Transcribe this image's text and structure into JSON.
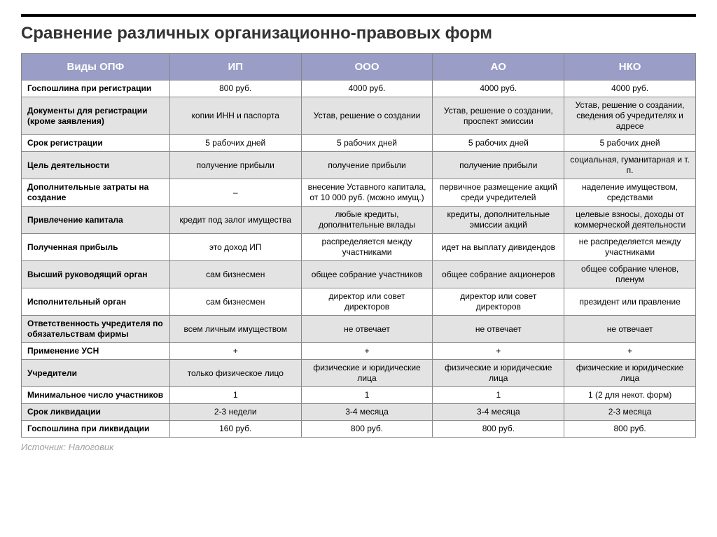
{
  "title": "Сравнение различных организационно-правовых форм",
  "source": "Источник: Налоговик",
  "table": {
    "type": "table",
    "header_bg": "#9a9dc5",
    "header_fg": "#ffffff",
    "row_alt_bg": "#e3e3e3",
    "row_bg": "#ffffff",
    "border_color": "#888888",
    "font_size_header": 15,
    "font_size_cell": 12,
    "columns": [
      "Виды ОПФ",
      "ИП",
      "ООО",
      "АО",
      "НКО"
    ],
    "rows": [
      {
        "label": "Госпошлина при регистрации",
        "cells": [
          "800 руб.",
          "4000 руб.",
          "4000 руб.",
          "4000 руб."
        ]
      },
      {
        "label": "Документы для регистрации (кроме заявления)",
        "cells": [
          "копии ИНН и паспорта",
          "Устав, решение о создании",
          "Устав, решение о создании, проспект эмиссии",
          "Устав, решение о создании, сведения об учредителях и адресе"
        ]
      },
      {
        "label": "Срок регистрации",
        "cells": [
          "5 рабочих дней",
          "5 рабочих дней",
          "5 рабочих дней",
          "5 рабочих дней"
        ]
      },
      {
        "label": "Цель деятельности",
        "cells": [
          "получение прибыли",
          "получение прибыли",
          "получение прибыли",
          "социальная, гуманитарная и т. п."
        ]
      },
      {
        "label": "Дополнительные затраты на создание",
        "cells": [
          "–",
          "внесение Уставного капитала, от 10 000 руб. (можно имущ.)",
          "первичное размещение акций среди учредителей",
          "наделение имуществом, средствами"
        ]
      },
      {
        "label": "Привлечение капитала",
        "cells": [
          "кредит под залог имущества",
          "любые кредиты, дополнительные вклады",
          "кредиты, дополнительные эмиссии акций",
          "целевые взносы, доходы от коммерческой деятельности"
        ]
      },
      {
        "label": "Полученная прибыль",
        "cells": [
          "это доход ИП",
          "распределяется между участниками",
          "идет на выплату дивидендов",
          "не распределяется между участниками"
        ]
      },
      {
        "label": "Высший руководящий орган",
        "cells": [
          "сам бизнесмен",
          "общее собрание участников",
          "общее собрание акционеров",
          "общее собрание членов, пленум"
        ]
      },
      {
        "label": "Исполнительный орган",
        "cells": [
          "сам бизнесмен",
          "директор или совет директоров",
          "директор или совет директоров",
          "президент или правление"
        ]
      },
      {
        "label": "Ответственность учредителя по обязательствам фирмы",
        "cells": [
          "всем личным имуществом",
          "не отвечает",
          "не отвечает",
          "не отвечает"
        ]
      },
      {
        "label": "Применение УСН",
        "cells": [
          "+",
          "+",
          "+",
          "+"
        ]
      },
      {
        "label": "Учредители",
        "cells": [
          "только физическое лицо",
          "физические и юридические лица",
          "физические и юридические лица",
          "физические и юридические лица"
        ]
      },
      {
        "label": "Минимальное число участников",
        "cells": [
          "1",
          "1",
          "1",
          "1 (2 для некот. форм)"
        ]
      },
      {
        "label": "Срок ликвидации",
        "cells": [
          "2-3 недели",
          "3-4 месяца",
          "3-4 месяца",
          "2-3 месяца"
        ]
      },
      {
        "label": "Госпошлина при ликвидации",
        "cells": [
          "160 руб.",
          "800 руб.",
          "800 руб.",
          "800 руб."
        ]
      }
    ]
  }
}
